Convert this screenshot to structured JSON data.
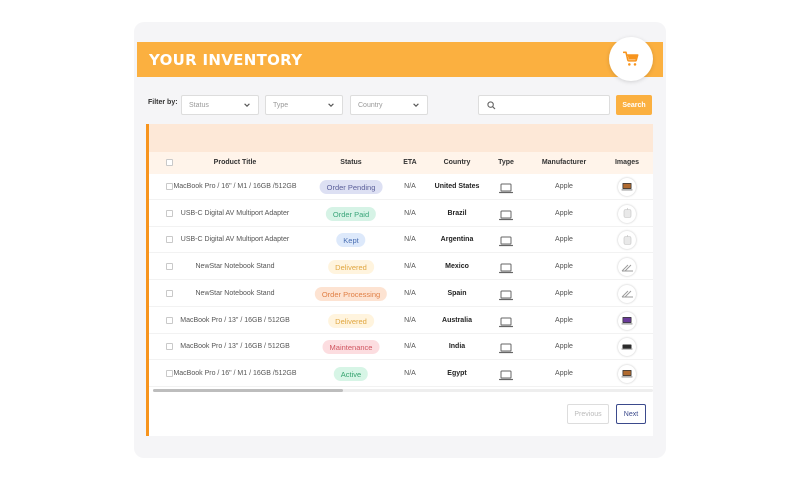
{
  "header": {
    "title": "YOUR INVENTORY"
  },
  "filters": {
    "label": "Filter by:",
    "status_placeholder": "Status",
    "type_placeholder": "Type",
    "country_placeholder": "Country",
    "search_value": "",
    "search_button": "Search"
  },
  "table": {
    "columns": [
      "Product Title",
      "Status",
      "ETA",
      "Country",
      "Type",
      "Manufacturer",
      "Images"
    ],
    "rows": [
      {
        "title": "MacBook Pro / 16\" / M1 / 16GB /512GB",
        "status": "Order Pending",
        "eta": "N/A",
        "country": "United States",
        "manufacturer": "Apple"
      },
      {
        "title": "USB-C Digital AV Multiport Adapter",
        "status": "Order Paid",
        "eta": "N/A",
        "country": "Brazil",
        "manufacturer": "Apple"
      },
      {
        "title": "USB-C Digital AV Multiport Adapter",
        "status": "Kept",
        "eta": "N/A",
        "country": "Argentina",
        "manufacturer": "Apple"
      },
      {
        "title": "NewStar Notebook Stand",
        "status": "Delivered",
        "eta": "N/A",
        "country": "Mexico",
        "manufacturer": "Apple"
      },
      {
        "title": "NewStar Notebook Stand",
        "status": "Order Processing",
        "eta": "N/A",
        "country": "Spain",
        "manufacturer": "Apple"
      },
      {
        "title": "MacBook Pro / 13\" / 16GB / 512GB",
        "status": "Delivered",
        "eta": "N/A",
        "country": "Australia",
        "manufacturer": "Apple"
      },
      {
        "title": "MacBook Pro / 13\" / 16GB / 512GB",
        "status": "Maintenance",
        "eta": "N/A",
        "country": "India",
        "manufacturer": "Apple"
      },
      {
        "title": "MacBook Pro / 16\" / M1 / 16GB /512GB",
        "status": "Active",
        "eta": "N/A",
        "country": "Egypt",
        "manufacturer": "Apple"
      }
    ]
  },
  "pagination": {
    "previous": "Previous",
    "next": "Next"
  },
  "colors": {
    "accent": "#fbb040",
    "Order Pending": {
      "bg": "#dde0f3",
      "fg": "#5b5f9a"
    },
    "Order Paid": {
      "bg": "#d6f3e6",
      "fg": "#3aa57a"
    },
    "Kept": {
      "bg": "#dde9fb",
      "fg": "#4a6fb3"
    },
    "Delivered": {
      "bg": "#fff4de",
      "fg": "#e0a640"
    },
    "Order Processing": {
      "bg": "#fde3d2",
      "fg": "#e07f45"
    },
    "Maintenance": {
      "bg": "#fcdde0",
      "fg": "#d05560"
    },
    "Active": {
      "bg": "#d7f5e6",
      "fg": "#35a36e"
    }
  },
  "icons": {
    "cart": "cart-icon",
    "search": "search-icon",
    "type": "laptop-icon"
  }
}
